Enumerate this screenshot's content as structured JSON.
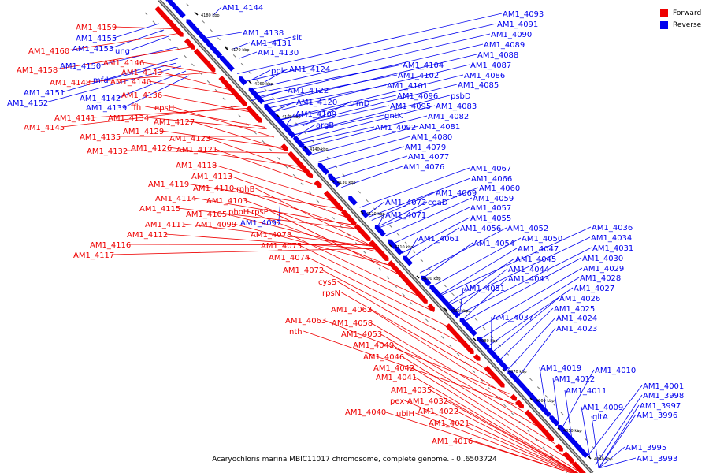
{
  "legend": {
    "forward_label": "Forward",
    "reverse_label": "Reverse",
    "forward_color": "#ee0000",
    "reverse_color": "#0000ee"
  },
  "caption": "Acaryochloris marina MBIC11017 chromosome, complete genome. - 0..6503724",
  "ticks": [
    "4180 kbp",
    "4170 kbp",
    "4160 kbp",
    "4150 kbp",
    "4140 kbp",
    "4130 kbp",
    "4120 kbp",
    "4110 kbp",
    "4100 kbp",
    "4090 kbp",
    "4080 kbp",
    "4070 kbp",
    "4060 kbp",
    "4050 kbp",
    "4040 kbp"
  ],
  "reverse_genes": [
    "AM1_4144",
    "AM1_4138",
    "slt",
    "AM1_4131",
    "AM1_4130",
    "ppk",
    "AM1_4124",
    "AM1_4122",
    "AM1_4120",
    "trmD",
    "AM1_4109",
    "argB",
    "AM1_4093",
    "AM1_4091",
    "AM1_4090",
    "AM1_4089",
    "AM1_4088",
    "AM1_4087",
    "AM1_4086",
    "AM1_4085",
    "AM1_4104",
    "AM1_4102",
    "AM1_4101",
    "AM1_4096",
    "psbD",
    "AM1_4095",
    "AM1_4083",
    "gntK",
    "AM1_4082",
    "AM1_4092",
    "AM1_4081",
    "AM1_4080",
    "AM1_4079",
    "AM1_4077",
    "AM1_4076",
    "AM1_4067",
    "AM1_4066",
    "AM1_4069",
    "AM1_4060",
    "coaD",
    "AM1_4073",
    "AM1_4059",
    "AM1_4071",
    "AM1_4057",
    "AM1_4055",
    "AM1_4056",
    "AM1_4052",
    "AM1_4061",
    "AM1_4050",
    "AM1_4054",
    "AM1_4047",
    "AM1_4045",
    "AM1_4044",
    "AM1_4043",
    "AM1_4051",
    "AM1_4037",
    "AM1_4036",
    "AM1_4034",
    "AM1_4031",
    "AM1_4030",
    "AM1_4029",
    "AM1_4028",
    "AM1_4027",
    "AM1_4026",
    "AM1_4025",
    "AM1_4024",
    "AM1_4023",
    "AM1_4019",
    "AM1_4010",
    "AM1_4012",
    "AM1_4011",
    "AM1_4009",
    "gltA",
    "AM1_4001",
    "AM1_3998",
    "AM1_3997",
    "AM1_3996",
    "AM1_3995",
    "AM1_3993",
    "AM1_4097",
    "AM1_4155",
    "AM1_4153",
    "ung",
    "AM1_4150",
    "mfd",
    "AM1_4151",
    "AM1_4152",
    "AM1_4142",
    "AM1_4139"
  ],
  "forward_genes": [
    "AM1_4159",
    "AM1_4160",
    "AM1_4158",
    "AM1_4146",
    "AM1_4143",
    "AM1_4148",
    "AM1_4140",
    "AM1_4136",
    "ffh",
    "epsH",
    "AM1_4141",
    "AM1_4134",
    "AM1_4127",
    "AM1_4145",
    "AM1_4135",
    "AM1_4129",
    "AM1_4123",
    "AM1_4132",
    "AM1_4126",
    "AM1_4121",
    "AM1_4118",
    "AM1_4113",
    "AM1_4119",
    "AM1_4110",
    "rnhB",
    "AM1_4114",
    "AM1_4103",
    "AM1_4115",
    "phoH",
    "rpsP",
    "AM1_4105",
    "AM1_4111",
    "AM1_4099",
    "AM1_4112",
    "AM1_4116",
    "AM1_4117",
    "AM1_4078",
    "AM1_4075",
    "AM1_4074",
    "AM1_4072",
    "cysS",
    "rpsN",
    "AM1_4062",
    "AM1_4063",
    "AM1_4058",
    "nth",
    "AM1_4053",
    "AM1_4049",
    "AM1_4046",
    "AM1_4042",
    "AM1_4041",
    "AM1_4035",
    "pex",
    "AM1_4032",
    "ubiH",
    "AM1_4022",
    "AM1_4040",
    "AM1_4021",
    "AM1_4016"
  ]
}
